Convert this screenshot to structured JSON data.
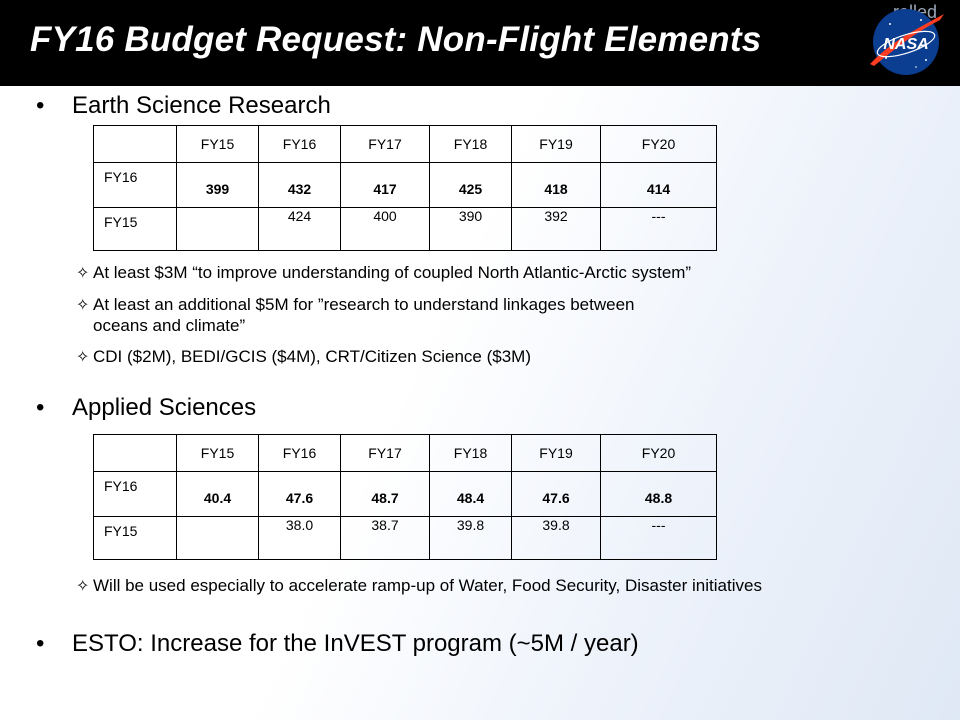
{
  "title": "FY16 Budget Request: Non-Flight Elements",
  "logo_text": "NASA",
  "logo_ghost_text": "relled",
  "section1": {
    "heading": "Earth Science Research",
    "table": {
      "headers": [
        "",
        "FY15",
        "FY16",
        "FY17",
        "FY18",
        "FY19",
        "FY20"
      ],
      "rows": [
        [
          "FY16",
          "399",
          "432",
          "417",
          "425",
          "418",
          "414"
        ],
        [
          "FY15",
          "",
          "424",
          "400",
          "390",
          "392",
          "---"
        ]
      ]
    },
    "bullets": [
      "At least $3M “to improve understanding of coupled North Atlantic-Arctic system”",
      "At least an additional $5M for ”research to understand linkages between",
      "oceans and climate”",
      "CDI ($2M), BEDI/GCIS ($4M), CRT/Citizen Science ($3M)"
    ]
  },
  "section2": {
    "heading": "Applied Sciences",
    "table": {
      "headers": [
        "",
        "FY15",
        "FY16",
        "FY17",
        "FY18",
        "FY19",
        "FY20"
      ],
      "rows": [
        [
          "FY16",
          "40.4",
          "47.6",
          "48.7",
          "48.4",
          "47.6",
          "48.8"
        ],
        [
          "FY15",
          "",
          "38.0",
          "38.7",
          "39.8",
          "39.8",
          "---"
        ]
      ]
    },
    "bullets": [
      "Will be used especially to accelerate ramp-up of Water, Food Security, Disaster initiatives"
    ]
  },
  "section3": {
    "heading": "ESTO: Increase for the InVEST program (~5M / year)"
  },
  "colors": {
    "title_bar": "#000000",
    "nasa_blue": "#0b3d91",
    "nasa_red": "#fc3d21"
  }
}
